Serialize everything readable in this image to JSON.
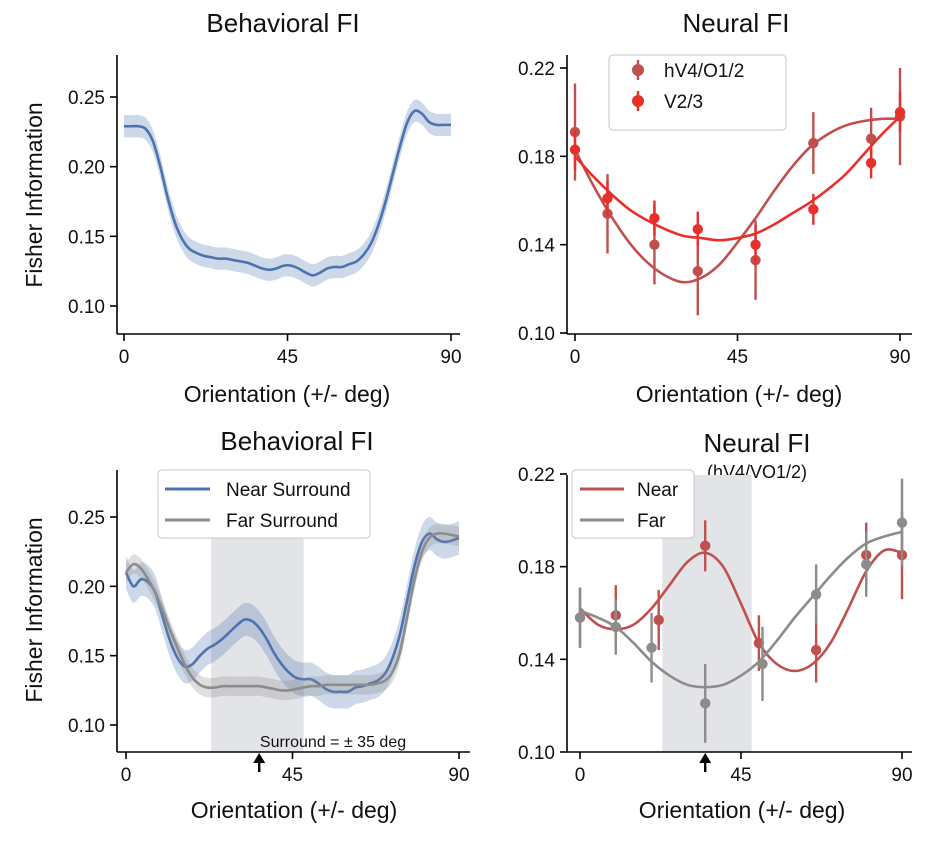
{
  "chart_data": [
    {
      "type": "line",
      "title": "Behavioral FI",
      "xlabel": "Orientation (+/- deg)",
      "ylabel": "Fisher Information",
      "xlim": [
        -2,
        92
      ],
      "ylim": [
        0.08,
        0.28
      ],
      "xticks": [
        0,
        45,
        90
      ],
      "xtick_labels": [
        "0",
        "45",
        "90"
      ],
      "yticks": [
        0.1,
        0.15,
        0.2,
        0.25
      ],
      "ytick_labels": [
        "0.10",
        "0.15",
        "0.20",
        "0.25"
      ],
      "series": [
        {
          "color": "#4c72b0",
          "x": [
            0,
            2,
            4,
            6,
            8,
            10,
            12,
            14,
            16,
            18,
            20,
            22,
            24,
            26,
            28,
            30,
            32,
            34,
            36,
            38,
            40,
            42,
            44,
            46,
            48,
            50,
            52,
            54,
            56,
            58,
            60,
            62,
            64,
            66,
            68,
            70,
            72,
            74,
            76,
            78,
            80,
            82,
            84,
            86,
            88,
            90
          ],
          "y": [
            0.229,
            0.229,
            0.229,
            0.227,
            0.218,
            0.2,
            0.178,
            0.16,
            0.148,
            0.141,
            0.138,
            0.136,
            0.135,
            0.134,
            0.134,
            0.133,
            0.132,
            0.131,
            0.129,
            0.127,
            0.126,
            0.127,
            0.129,
            0.129,
            0.127,
            0.124,
            0.122,
            0.124,
            0.127,
            0.128,
            0.128,
            0.13,
            0.132,
            0.137,
            0.145,
            0.158,
            0.175,
            0.195,
            0.215,
            0.232,
            0.24,
            0.238,
            0.232,
            0.23,
            0.23,
            0.23
          ],
          "band": 0.008
        }
      ]
    },
    {
      "type": "scatter",
      "title": "Neural FI",
      "xlabel": "Orientation (+/- deg)",
      "ylabel": "",
      "xlim": [
        -1,
        91
      ],
      "ylim": [
        0.1,
        0.225
      ],
      "xticks": [
        0,
        45,
        90
      ],
      "xtick_labels": [
        "0",
        "45",
        "90"
      ],
      "yticks": [
        0.1,
        0.14,
        0.18,
        0.22
      ],
      "ytick_labels": [
        "0.10",
        "0.14",
        "0.18",
        "0.22"
      ],
      "legend": "top-left",
      "series": [
        {
          "name": "hV4/O1/2",
          "color": "#c0504d",
          "x": [
            0,
            9,
            22,
            34,
            50,
            66,
            82,
            90
          ],
          "y": [
            0.191,
            0.154,
            0.14,
            0.128,
            0.133,
            0.186,
            0.188,
            0.198
          ],
          "err": [
            0.022,
            0.018,
            0.018,
            0.02,
            0.018,
            0.014,
            0.014,
            0.022
          ],
          "fit_x": [
            0,
            5,
            10,
            15,
            20,
            25,
            30,
            35,
            40,
            45,
            50,
            55,
            60,
            65,
            70,
            75,
            80,
            85,
            90
          ],
          "fit_y": [
            0.183,
            0.167,
            0.153,
            0.141,
            0.132,
            0.126,
            0.123,
            0.125,
            0.131,
            0.141,
            0.152,
            0.164,
            0.175,
            0.184,
            0.19,
            0.194,
            0.196,
            0.197,
            0.197
          ]
        },
        {
          "name": "V2/3",
          "color": "#e8302a",
          "x": [
            0,
            9,
            22,
            34,
            50,
            66,
            82,
            90
          ],
          "y": [
            0.183,
            0.161,
            0.152,
            0.147,
            0.14,
            0.156,
            0.177,
            0.2
          ],
          "err": [
            0.009,
            0.008,
            0.008,
            0.008,
            0.009,
            0.007,
            0.007,
            0.009
          ],
          "fit_x": [
            0,
            5,
            10,
            15,
            20,
            25,
            30,
            35,
            40,
            45,
            50,
            55,
            60,
            65,
            70,
            75,
            80,
            85,
            90
          ],
          "fit_y": [
            0.18,
            0.171,
            0.163,
            0.156,
            0.151,
            0.147,
            0.144,
            0.143,
            0.142,
            0.143,
            0.145,
            0.149,
            0.154,
            0.159,
            0.165,
            0.172,
            0.181,
            0.19,
            0.198
          ]
        }
      ]
    },
    {
      "type": "line",
      "title": "Behavioral FI",
      "xlabel": "Orientation (+/- deg)",
      "ylabel": "Fisher Information",
      "xlim": [
        -2,
        92
      ],
      "ylim": [
        0.08,
        0.28
      ],
      "xticks": [
        0,
        45,
        90
      ],
      "xtick_labels": [
        "0",
        "45",
        "90"
      ],
      "yticks": [
        0.1,
        0.15,
        0.2,
        0.25
      ],
      "ytick_labels": [
        "0.10",
        "0.15",
        "0.20",
        "0.25"
      ],
      "legend": "top-center",
      "shaded_region": [
        23,
        48
      ],
      "annotation": "Surround = ± 35 deg",
      "arrow_x": 36,
      "series": [
        {
          "name": "Near Surround",
          "color": "#4c72b0",
          "x": [
            0,
            2,
            4,
            6,
            8,
            10,
            12,
            14,
            16,
            18,
            20,
            22,
            24,
            26,
            28,
            30,
            32,
            34,
            36,
            38,
            40,
            42,
            44,
            46,
            48,
            50,
            52,
            54,
            56,
            58,
            60,
            62,
            64,
            66,
            68,
            70,
            72,
            74,
            76,
            78,
            80,
            82,
            84,
            86,
            88,
            90
          ],
          "y": [
            0.21,
            0.2,
            0.205,
            0.203,
            0.195,
            0.177,
            0.16,
            0.148,
            0.142,
            0.144,
            0.15,
            0.155,
            0.158,
            0.162,
            0.167,
            0.172,
            0.176,
            0.175,
            0.17,
            0.162,
            0.152,
            0.144,
            0.138,
            0.134,
            0.133,
            0.133,
            0.13,
            0.126,
            0.124,
            0.124,
            0.124,
            0.127,
            0.128,
            0.13,
            0.132,
            0.137,
            0.148,
            0.165,
            0.19,
            0.215,
            0.232,
            0.238,
            0.234,
            0.232,
            0.233,
            0.235
          ],
          "band": 0.012
        },
        {
          "name": "Far Surround",
          "color": "#8c8c8c",
          "x": [
            0,
            2,
            4,
            6,
            8,
            10,
            12,
            14,
            16,
            18,
            20,
            22,
            24,
            26,
            28,
            30,
            32,
            34,
            36,
            38,
            40,
            42,
            44,
            46,
            48,
            50,
            52,
            54,
            56,
            58,
            60,
            62,
            64,
            66,
            68,
            70,
            72,
            74,
            76,
            78,
            80,
            82,
            84,
            86,
            88,
            90
          ],
          "y": [
            0.21,
            0.216,
            0.213,
            0.205,
            0.195,
            0.182,
            0.168,
            0.155,
            0.143,
            0.134,
            0.129,
            0.127,
            0.127,
            0.128,
            0.128,
            0.128,
            0.128,
            0.128,
            0.128,
            0.127,
            0.126,
            0.125,
            0.125,
            0.126,
            0.127,
            0.128,
            0.128,
            0.129,
            0.129,
            0.129,
            0.129,
            0.129,
            0.129,
            0.129,
            0.13,
            0.132,
            0.138,
            0.152,
            0.178,
            0.205,
            0.225,
            0.235,
            0.238,
            0.238,
            0.237,
            0.236
          ],
          "band": 0.007
        }
      ]
    },
    {
      "type": "scatter",
      "title": "Neural FI",
      "subtitle": "(hV4/VO1/2)",
      "xlabel": "Orientation (+/- deg)",
      "ylabel": "",
      "xlim": [
        -1,
        91
      ],
      "ylim": [
        0.1,
        0.22
      ],
      "xticks": [
        0,
        45,
        90
      ],
      "xtick_labels": [
        "0",
        "45",
        "90"
      ],
      "yticks": [
        0.1,
        0.14,
        0.18,
        0.22
      ],
      "ytick_labels": [
        "0.10",
        "0.14",
        "0.18",
        "0.22"
      ],
      "legend": "top-left",
      "shaded_region": [
        23,
        48
      ],
      "arrow_x": 35,
      "series": [
        {
          "name": "Near",
          "color": "#c0504d",
          "x": [
            0,
            10,
            22,
            35,
            50,
            66,
            80,
            90
          ],
          "y": [
            0.158,
            0.159,
            0.157,
            0.189,
            0.147,
            0.144,
            0.185,
            0.185
          ],
          "err": [
            0.013,
            0.013,
            0.013,
            0.011,
            0.012,
            0.014,
            0.014,
            0.019
          ],
          "fit_x": [
            0,
            5,
            10,
            15,
            20,
            25,
            30,
            35,
            40,
            45,
            50,
            55,
            60,
            65,
            70,
            75,
            80,
            85,
            90
          ],
          "fit_y": [
            0.162,
            0.155,
            0.153,
            0.155,
            0.162,
            0.172,
            0.182,
            0.186,
            0.18,
            0.164,
            0.147,
            0.138,
            0.135,
            0.138,
            0.147,
            0.162,
            0.178,
            0.187,
            0.186
          ]
        },
        {
          "name": "Far",
          "color": "#8c8c8c",
          "x": [
            0,
            10,
            20,
            35,
            51,
            66,
            80,
            90
          ],
          "y": [
            0.158,
            0.154,
            0.145,
            0.121,
            0.138,
            0.168,
            0.181,
            0.199
          ],
          "err": [
            0.013,
            0.012,
            0.015,
            0.017,
            0.016,
            0.013,
            0.014,
            0.019
          ],
          "fit_x": [
            0,
            5,
            10,
            15,
            20,
            25,
            30,
            35,
            40,
            45,
            50,
            55,
            60,
            65,
            70,
            75,
            80,
            85,
            90
          ],
          "fit_y": [
            0.161,
            0.158,
            0.154,
            0.147,
            0.139,
            0.133,
            0.129,
            0.128,
            0.129,
            0.133,
            0.139,
            0.148,
            0.158,
            0.167,
            0.176,
            0.184,
            0.19,
            0.193,
            0.195
          ]
        }
      ]
    }
  ]
}
